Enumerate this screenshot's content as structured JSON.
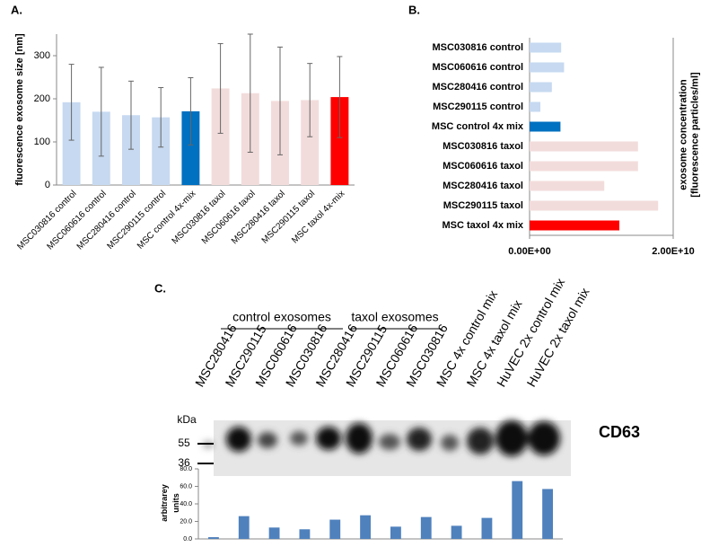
{
  "chart_data": [
    {
      "type": "bar",
      "label": "A.",
      "ylabel": "fluorescence exosome size [nm]",
      "categories": [
        "MSC030816 control",
        "MSC060616 control",
        "MSC280416 control",
        "MSC290115 control",
        "MSC control 4x-mix",
        "MSC030816 taxol",
        "MSC060616 taxol",
        "MSC280416 taxol",
        "MSC290115 taxol",
        "MSC taxol 4x-mix"
      ],
      "values": [
        192,
        170,
        162,
        157,
        171,
        224,
        213,
        195,
        197,
        204
      ],
      "errors": [
        88,
        103,
        79,
        69,
        78,
        104,
        137,
        125,
        85,
        94
      ],
      "colors": [
        "#c6d9f0",
        "#c6d9f0",
        "#c6d9f0",
        "#c6d9f0",
        "#0070c0",
        "#f2dcdb",
        "#f2dcdb",
        "#f2dcdb",
        "#f2dcdb",
        "#ff0000"
      ],
      "ylim": [
        0,
        350
      ],
      "yticks": [
        0,
        100,
        200,
        300
      ]
    },
    {
      "type": "barh",
      "label": "B.",
      "ylabel": [
        "exosome concentration",
        "[fluorescence particles/ml]"
      ],
      "categories": [
        "MSC030816 control",
        "MSC060616 control",
        "MSC280416 control",
        "MSC290115 control",
        "MSC control 4x mix",
        "MSC030816 taxol",
        "MSC060616 taxol",
        "MSC280416 taxol",
        "MSC290115 taxol",
        "MSC taxol 4x mix"
      ],
      "values": [
        4400000000,
        4800000000,
        3100000000,
        1500000000,
        4300000000,
        15100000000,
        15100000000,
        10400000000,
        17900000000,
        12500000000
      ],
      "colors": [
        "#c6d9f0",
        "#c6d9f0",
        "#c6d9f0",
        "#c6d9f0",
        "#0070c0",
        "#f2dcdb",
        "#f2dcdb",
        "#f2dcdb",
        "#f2dcdb",
        "#ff0000"
      ],
      "xlim": [
        0,
        20000000000
      ],
      "xticks": [
        {
          "value": 0,
          "label": "0.00E+00"
        },
        {
          "value": 20000000000,
          "label": "2.00E+10"
        }
      ]
    },
    {
      "type": "bar",
      "label": "C.",
      "ylabel": [
        "arbitrarey",
        "units"
      ],
      "annotations": [
        "control exosomes",
        "taxol exosomes",
        "kDa",
        "55",
        "36",
        "CD63"
      ],
      "categories": [
        "MSC280416",
        "MSC290115",
        "MSC060616",
        "MSC030816",
        "MSC280416",
        "MSC290115",
        "MSC060616",
        "MSC030816",
        "MSC 4x control mix",
        "MSC 4x taxol mix",
        "HuVEC 2x control mix",
        "HuVEC 2x taxol mix"
      ],
      "values": [
        2,
        26,
        13,
        11,
        22,
        27,
        14,
        25,
        15,
        24,
        66,
        57
      ],
      "color": "#4f81bd",
      "ylim": [
        0,
        80
      ],
      "yticks": [
        {
          "value": 0,
          "label": "0.0"
        },
        {
          "value": 20,
          "label": "20.0"
        },
        {
          "value": 40,
          "label": "40.0"
        },
        {
          "value": 60,
          "label": "60.0"
        },
        {
          "value": 80,
          "label": "80.0"
        }
      ]
    }
  ]
}
